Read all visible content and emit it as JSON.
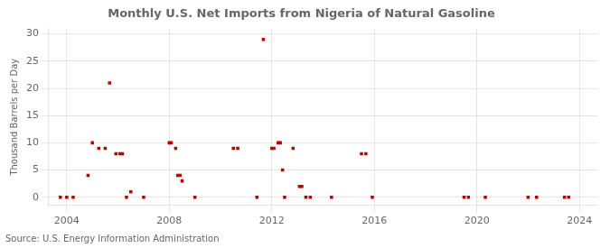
{
  "chart_data": {
    "type": "scatter",
    "title": "Monthly U.S. Net Imports from Nigeria of Natural Gasoline",
    "ylabel": "Thousand Barrels per Day",
    "annotations": [
      "Source: U.S. Energy Information Administration"
    ],
    "color": "#bb0000",
    "marker": "square",
    "grid": true,
    "xlim": [
      2003.3,
      2024.7
    ],
    "ylim": [
      -1.5,
      31
    ],
    "xticks": [
      2004,
      2008,
      2012,
      2016,
      2020,
      2024
    ],
    "yticks": [
      0,
      5,
      10,
      15,
      20,
      25,
      30
    ],
    "x": [
      2003.75,
      2004.0,
      2004.25,
      2004.83,
      2005.0,
      2005.25,
      2005.5,
      2005.67,
      2005.92,
      2006.08,
      2006.17,
      2006.33,
      2006.5,
      2007.0,
      2008.0,
      2008.08,
      2008.25,
      2008.33,
      2008.42,
      2008.5,
      2009.0,
      2010.5,
      2010.67,
      2011.42,
      2011.67,
      2012.0,
      2012.08,
      2012.25,
      2012.33,
      2012.42,
      2012.5,
      2012.83,
      2013.08,
      2013.17,
      2013.33,
      2013.5,
      2014.33,
      2015.5,
      2015.67,
      2015.92,
      2019.5,
      2019.67,
      2020.33,
      2022.0,
      2022.33,
      2023.42,
      2023.58
    ],
    "values": [
      0,
      0,
      0,
      4,
      10,
      9,
      9,
      21,
      8,
      8,
      8,
      0,
      1,
      0,
      10,
      10,
      9,
      4,
      4,
      3,
      0,
      9,
      9,
      0,
      29,
      9,
      9,
      10,
      10,
      5,
      0,
      9,
      2,
      2,
      0,
      0,
      0,
      8,
      8,
      0,
      0,
      0,
      0,
      0,
      0,
      0,
      0
    ]
  }
}
